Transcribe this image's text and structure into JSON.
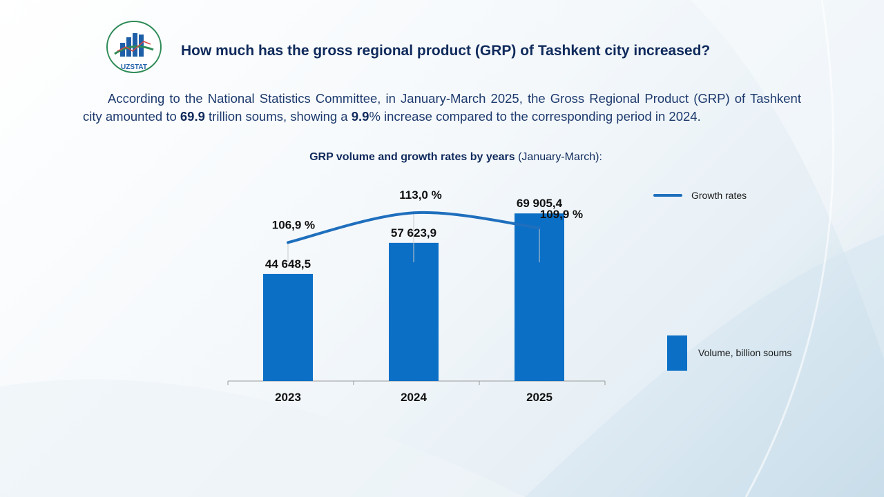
{
  "header": {
    "logo_text": "UZSTAT",
    "title": "How much has the gross regional product (GRP) of Tashkent city increased?"
  },
  "intro": {
    "part1": "According to the National Statistics Committee, in January-March 2025, the Gross Regional Product (GRP) of Tashkent city amounted to ",
    "value1": "69.9",
    "part2": " trillion soums, showing a ",
    "value2": "9.9",
    "part3": "% increase compared to the corresponding period in 2024."
  },
  "colors": {
    "bar": "#0b6fc6",
    "line": "#1f6fbd",
    "text": "#0f2a5c"
  },
  "chart_data": {
    "type": "bar",
    "title_bold": "GRP volume and growth rates by years",
    "title_rest": " (January-March):",
    "categories": [
      "2023",
      "2024",
      "2025"
    ],
    "series": [
      {
        "name": "Volume, billion soums",
        "kind": "bar",
        "values": [
          44648.5,
          57623.9,
          69905.4
        ],
        "labels": [
          "44 648,5",
          "57 623,9",
          "69 905,4"
        ]
      },
      {
        "name": "Growth rates",
        "kind": "line",
        "values": [
          106.9,
          113.0,
          109.9
        ],
        "labels": [
          "106,9 %",
          "113,0 %",
          "109,9 %"
        ]
      }
    ],
    "legend": [
      "Growth rates",
      "Volume, billion soums"
    ]
  }
}
